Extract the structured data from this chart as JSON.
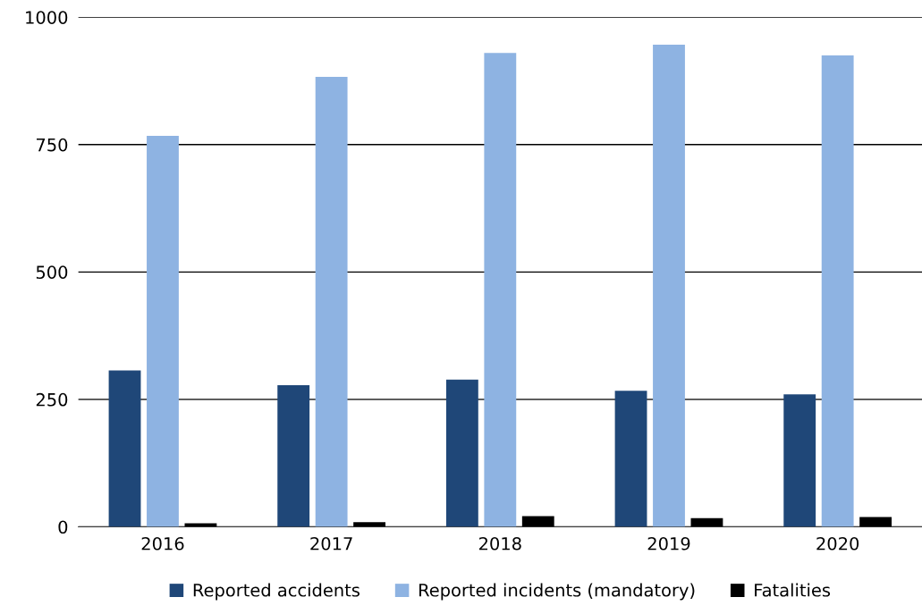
{
  "chart_data": {
    "type": "bar",
    "categories": [
      "2016",
      "2017",
      "2018",
      "2019",
      "2020"
    ],
    "series": [
      {
        "name": "Reported accidents",
        "color": "#1f4778",
        "values": [
          307,
          278,
          289,
          267,
          260
        ]
      },
      {
        "name": "Reported incidents (mandatory)",
        "color": "#8eb3e2",
        "values": [
          767,
          883,
          930,
          946,
          925
        ]
      },
      {
        "name": "Fatalities",
        "color": "#000000",
        "values": [
          7,
          9,
          21,
          17,
          19
        ]
      }
    ],
    "ylim": [
      0,
      1000
    ],
    "yticks": [
      0,
      250,
      500,
      750,
      1000
    ],
    "grid": "y",
    "legend": "bottom"
  }
}
